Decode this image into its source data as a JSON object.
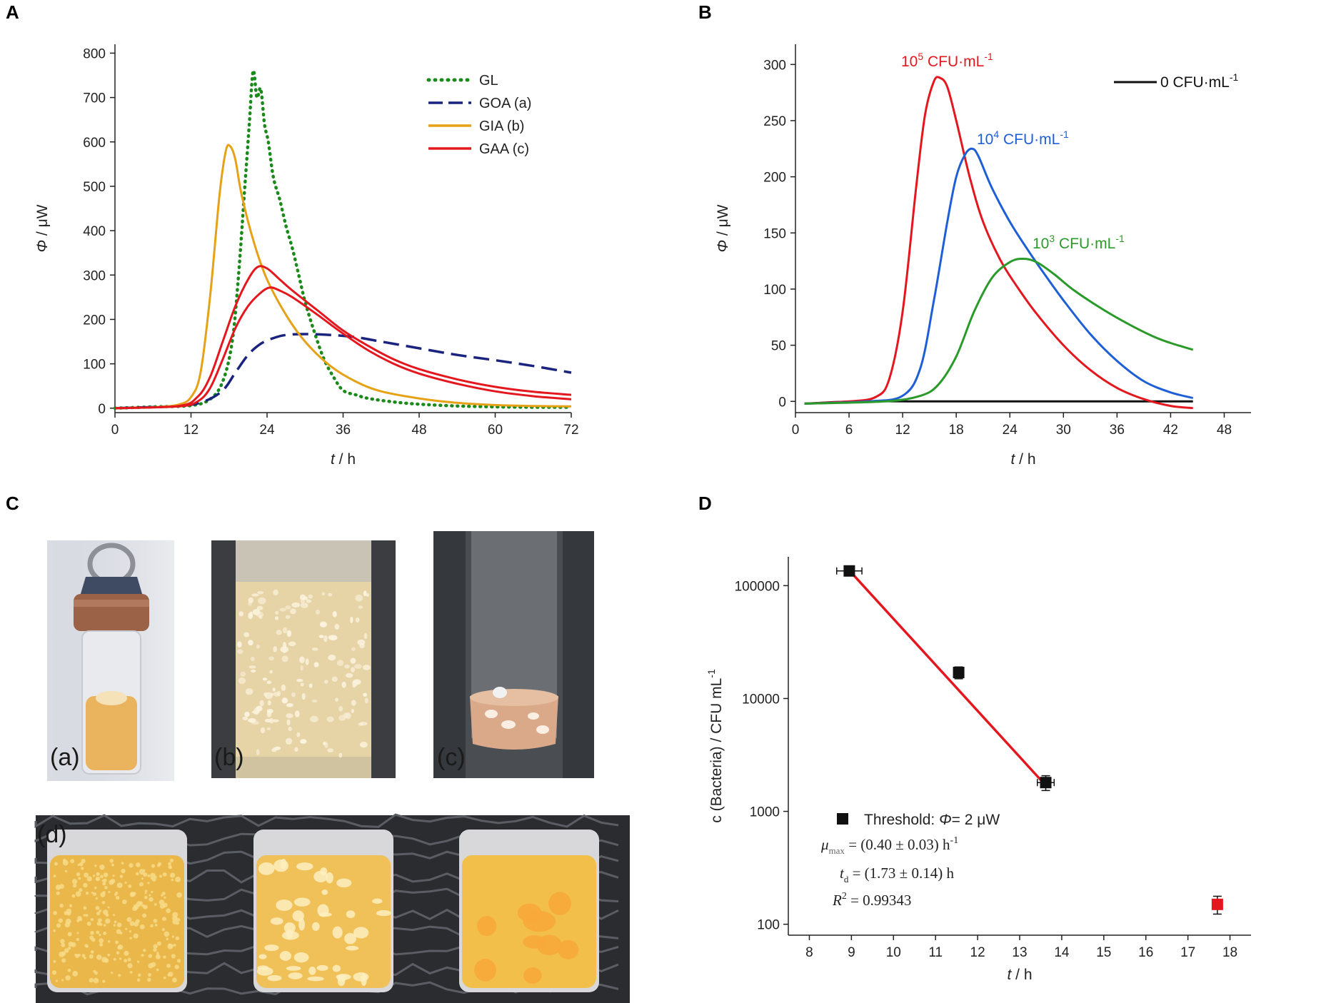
{
  "panels": {
    "A": {
      "label": "A",
      "chart_data": {
        "type": "line",
        "xlabel_italic": "t",
        "xlabel_unit": " / h",
        "ylabel_italic": "Φ",
        "ylabel_unit": " / μW",
        "xlim": [
          0,
          72
        ],
        "ylim": [
          -10,
          820
        ],
        "xticks": [
          0,
          12,
          24,
          36,
          48,
          60,
          72
        ],
        "yticks": [
          0,
          100,
          200,
          300,
          400,
          500,
          600,
          700,
          800
        ],
        "legend_position": "top-right",
        "series": [
          {
            "name": "GL",
            "color": "#1a8a1a",
            "style": "dotted",
            "x": [
              0,
              6,
              12,
              15,
              17,
              18.5,
              19.5,
              20.5,
              21.2,
              21.8,
              22.4,
              23,
              23.6,
              24.2,
              25,
              26,
              27,
              28,
              29,
              30,
              31.5,
              33,
              34.5,
              36,
              38,
              40,
              44,
              48,
              54,
              60,
              66,
              72
            ],
            "y": [
              0,
              3,
              6,
              20,
              60,
              150,
              300,
              500,
              640,
              760,
              700,
              720,
              640,
              600,
              520,
              470,
              410,
              360,
              300,
              240,
              170,
              110,
              70,
              40,
              30,
              22,
              14,
              9,
              5,
              3,
              2,
              2
            ]
          },
          {
            "name": "GOA (a)",
            "color": "#1a237e",
            "style": "dashed",
            "x": [
              0,
              10,
              14,
              17,
              19,
              21,
              23,
              25,
              27,
              30,
              34,
              38,
              42,
              48,
              54,
              60,
              66,
              72
            ],
            "y": [
              0,
              5,
              15,
              40,
              80,
              120,
              145,
              158,
              165,
              167,
              165,
              160,
              150,
              135,
              120,
              108,
              95,
              80
            ]
          },
          {
            "name": "GIA (b)",
            "color": "#e6a217",
            "style": "solid",
            "x": [
              0,
              6,
              10,
              12,
              13.5,
              15,
              16.5,
              17.5,
              18.2,
              19,
              20,
              22,
              24,
              27,
              30,
              34,
              38,
              42,
              48,
              54,
              60,
              66,
              72
            ],
            "y": [
              0,
              2,
              8,
              25,
              80,
              250,
              480,
              580,
              590,
              560,
              480,
              370,
              290,
              210,
              150,
              95,
              60,
              38,
              22,
              12,
              7,
              5,
              4
            ]
          },
          {
            "name": "GAA (c)",
            "color": "#e4171f",
            "style": "solid",
            "x": [
              0,
              10,
              13,
              15,
              17,
              19,
              21,
              22.5,
              24,
              26,
              28,
              32,
              36,
              40,
              44,
              48,
              54,
              60,
              66,
              72
            ],
            "y": [
              0,
              5,
              25,
              70,
              150,
              230,
              290,
              318,
              315,
              290,
              265,
              220,
              175,
              140,
              110,
              88,
              65,
              48,
              37,
              30
            ]
          },
          {
            "name": "GAA (c) replicate",
            "color": "#e4171f",
            "style": "solid",
            "legend": false,
            "x": [
              0,
              10,
              13,
              15,
              17,
              19,
              21,
              23,
              24.5,
              26,
              28,
              32,
              36,
              40,
              44,
              48,
              54,
              60,
              66,
              72
            ],
            "y": [
              0,
              4,
              15,
              45,
              110,
              180,
              230,
              260,
              272,
              265,
              250,
              210,
              168,
              130,
              100,
              78,
              55,
              38,
              27,
              20
            ]
          }
        ]
      }
    },
    "B": {
      "label": "B",
      "chart_data": {
        "type": "line",
        "xlabel_italic": "t",
        "xlabel_unit": " / h",
        "ylabel_italic": "Φ",
        "ylabel_unit": " / μW",
        "xlim": [
          0,
          51
        ],
        "ylim": [
          -10,
          318
        ],
        "xticks": [
          0,
          6,
          12,
          18,
          24,
          30,
          36,
          42,
          48
        ],
        "yticks": [
          0,
          50,
          100,
          150,
          200,
          250,
          300
        ],
        "series": [
          {
            "name": "0 CFU·mL⁻¹",
            "color": "#111111",
            "x": [
              1,
              7,
              15,
              30,
              44.5
            ],
            "y": [
              -2,
              0,
              0,
              0,
              0
            ]
          },
          {
            "name": "10⁵ CFU·mL⁻¹",
            "color": "#e4171f",
            "x": [
              1,
              6,
              9,
              10.5,
              12,
              13.5,
              14.5,
              15.5,
              16.2,
              17,
              18,
              19.5,
              21,
              23,
              25,
              27,
              30,
              33,
              36,
              39,
              42,
              44.5
            ],
            "y": [
              -2,
              0,
              4,
              20,
              80,
              190,
              255,
              285,
              288,
              280,
              250,
              200,
              160,
              125,
              100,
              78,
              50,
              28,
              12,
              2,
              -4,
              -6
            ]
          },
          {
            "name": "10⁴ CFU·mL⁻¹",
            "color": "#1f5fd6",
            "x": [
              1,
              8,
              12,
              14,
              15.5,
              17,
              18,
              19,
              19.8,
              20.5,
              22,
              24,
              26,
              28,
              30,
              33,
              36,
              39,
              42,
              44.5
            ],
            "y": [
              -2,
              0,
              5,
              30,
              90,
              160,
              200,
              220,
              225,
              218,
              190,
              160,
              135,
              112,
              90,
              60,
              36,
              18,
              8,
              3
            ]
          },
          {
            "name": "10³ CFU·mL⁻¹",
            "color": "#2a9a2a",
            "x": [
              1,
              10,
              14,
              16,
              18,
              20,
              22,
              24,
              25.5,
              27,
              29,
              31,
              34,
              37,
              40,
              42,
              44.5
            ],
            "y": [
              -2,
              0,
              5,
              15,
              40,
              80,
              110,
              124,
              127,
              124,
              113,
              100,
              84,
              70,
              58,
              52,
              46
            ]
          }
        ],
        "annotations": [
          {
            "base": "10",
            "sup": "5",
            "unit": " CFU·mL",
            "unitsup": "-1",
            "color": "#e4171f"
          },
          {
            "base": "10",
            "sup": "4",
            "unit": " CFU·mL",
            "unitsup": "-1",
            "color": "#1f5fd6"
          },
          {
            "base": "10",
            "sup": "3",
            "unit": " CFU·mL",
            "unitsup": "-1",
            "color": "#2a9a2a"
          }
        ],
        "legend": {
          "text": "0 CFU·mL",
          "sup": "-1",
          "color": "#111111"
        }
      }
    },
    "C": {
      "label": "C",
      "photos": [
        "(a)",
        "(b)",
        "(c)",
        "(d)"
      ]
    },
    "D": {
      "label": "D",
      "chart_data": {
        "type": "scatter",
        "yscale": "log",
        "xlabel_italic": "t",
        "xlabel_unit": " / h",
        "ylabel": "c (Bacteria) / CFU mL",
        "ylabel_sup": "-1",
        "xlim": [
          7.5,
          18.5
        ],
        "ylim": [
          80,
          180000
        ],
        "xticks": [
          8,
          9,
          10,
          11,
          12,
          13,
          14,
          15,
          16,
          17,
          18
        ],
        "yticks": [
          100,
          1000,
          10000,
          100000
        ],
        "points": [
          {
            "x": 8.95,
            "y": 135000,
            "xerr": 0.3,
            "yerr_rel": 0.08,
            "color": "#111111"
          },
          {
            "x": 11.55,
            "y": 17000,
            "xerr": 0.05,
            "yerr_rel": 0.12,
            "color": "#111111"
          },
          {
            "x": 13.62,
            "y": 1800,
            "xerr": 0.2,
            "yerr_rel": 0.15,
            "color": "#111111"
          },
          {
            "x": 17.7,
            "y": 150,
            "xerr": 0,
            "yerr_rel": 0.18,
            "color": "#e4171f"
          }
        ],
        "fit": {
          "x": [
            9.0,
            13.5
          ],
          "y": [
            130000,
            1900
          ],
          "color": "#e4171f"
        },
        "legend": {
          "text": "Threshold: ",
          "phi": "Φ",
          "value": "= 2 μW"
        },
        "stats": {
          "mu_sym": "μ",
          "mu_sub": "max",
          "mu_val": " = (0.40 ± 0.03) h",
          "mu_sup": "-1",
          "td_sym": "t",
          "td_sub": "d",
          "td_val": " = (1.73 ± 0.14) h",
          "r2_sym": "R",
          "r2_sup": "2",
          "r2_val": " = 0.99343"
        }
      }
    }
  }
}
